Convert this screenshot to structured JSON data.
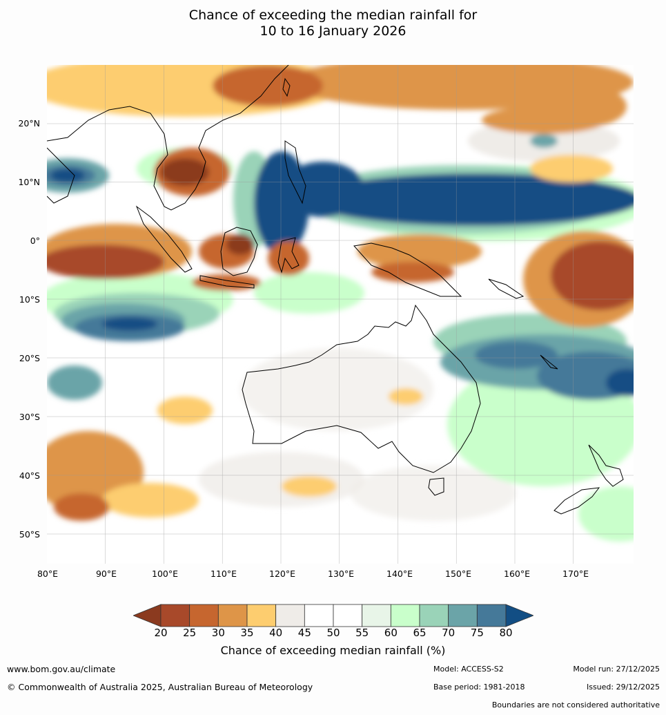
{
  "title_line1": "Chance of exceeding the median rainfall for",
  "title_line2": "10 to 16 January 2026",
  "lat_labels": [
    "20°N",
    "10°N",
    "0°",
    "10°S",
    "20°S",
    "30°S",
    "40°S",
    "50°S"
  ],
  "lon_labels": [
    "80°E",
    "90°E",
    "100°E",
    "110°E",
    "120°E",
    "130°E",
    "140°E",
    "150°E",
    "160°E",
    "170°E"
  ],
  "colorbar": {
    "title": "Chance of exceeding median rainfall (%)",
    "ticks": [
      "20",
      "25",
      "30",
      "35",
      "40",
      "45",
      "50",
      "55",
      "60",
      "65",
      "70",
      "75",
      "80"
    ],
    "colors": [
      "#8b3a1f",
      "#a8492a",
      "#c6662f",
      "#de9548",
      "#fdcd6f",
      "#efece8",
      "#ffffff",
      "#ffffff",
      "#e8f5e8",
      "#c9ffcb",
      "#9ad3b8",
      "#6ba4a8",
      "#457999",
      "#124e84"
    ]
  },
  "footer": {
    "url": "www.bom.gov.au/climate",
    "copyright": "© Commonwealth of Australia 2025, Australian Bureau of Meteorology",
    "model": "Model: ACCESS-S2",
    "base_period": "Base period: 1981-2018",
    "model_run": "Model run: 27/12/2025",
    "issued": "Issued: 29/12/2025",
    "disclaimer": "Boundaries are not considered authoritative"
  }
}
